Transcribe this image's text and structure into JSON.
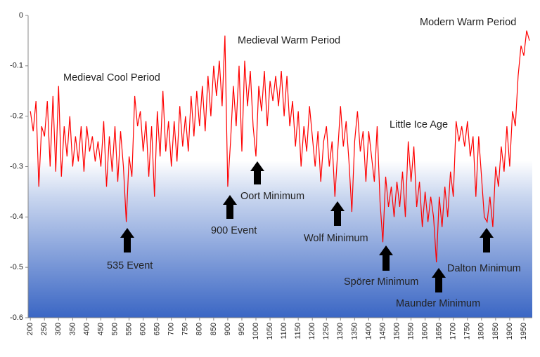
{
  "chart_data": {
    "type": "line",
    "color": "#ff0000",
    "x": [
      200,
      210,
      220,
      230,
      240,
      250,
      260,
      270,
      280,
      290,
      300,
      310,
      320,
      330,
      340,
      350,
      360,
      370,
      380,
      390,
      400,
      410,
      420,
      430,
      440,
      450,
      460,
      470,
      480,
      490,
      500,
      510,
      520,
      530,
      540,
      550,
      560,
      570,
      580,
      590,
      600,
      610,
      620,
      630,
      640,
      650,
      660,
      670,
      680,
      690,
      700,
      710,
      720,
      730,
      740,
      750,
      760,
      770,
      780,
      790,
      800,
      810,
      820,
      830,
      840,
      850,
      860,
      870,
      880,
      890,
      900,
      910,
      920,
      930,
      940,
      950,
      960,
      970,
      980,
      990,
      1000,
      1010,
      1020,
      1030,
      1040,
      1050,
      1060,
      1070,
      1080,
      1090,
      1100,
      1110,
      1120,
      1130,
      1140,
      1150,
      1160,
      1170,
      1180,
      1190,
      1200,
      1210,
      1220,
      1230,
      1240,
      1250,
      1260,
      1270,
      1280,
      1290,
      1300,
      1310,
      1320,
      1330,
      1340,
      1350,
      1360,
      1370,
      1380,
      1390,
      1400,
      1410,
      1420,
      1430,
      1440,
      1450,
      1460,
      1470,
      1480,
      1490,
      1500,
      1510,
      1520,
      1530,
      1540,
      1550,
      1560,
      1570,
      1580,
      1590,
      1600,
      1610,
      1620,
      1630,
      1640,
      1650,
      1660,
      1670,
      1680,
      1690,
      1700,
      1710,
      1720,
      1730,
      1740,
      1750,
      1760,
      1770,
      1780,
      1790,
      1800,
      1810,
      1820,
      1830,
      1840,
      1850,
      1860,
      1870,
      1880,
      1890,
      1900,
      1910,
      1920,
      1930,
      1940,
      1950,
      1960,
      1970
    ],
    "values": [
      -0.19,
      -0.23,
      -0.17,
      -0.34,
      -0.22,
      -0.24,
      -0.17,
      -0.3,
      -0.16,
      -0.31,
      -0.14,
      -0.32,
      -0.22,
      -0.28,
      -0.2,
      -0.3,
      -0.24,
      -0.29,
      -0.22,
      -0.31,
      -0.22,
      -0.27,
      -0.24,
      -0.29,
      -0.25,
      -0.3,
      -0.21,
      -0.34,
      -0.24,
      -0.31,
      -0.22,
      -0.33,
      -0.23,
      -0.3,
      -0.41,
      -0.28,
      -0.32,
      -0.16,
      -0.22,
      -0.19,
      -0.27,
      -0.21,
      -0.32,
      -0.22,
      -0.36,
      -0.19,
      -0.28,
      -0.15,
      -0.27,
      -0.21,
      -0.3,
      -0.21,
      -0.29,
      -0.18,
      -0.26,
      -0.2,
      -0.27,
      -0.16,
      -0.24,
      -0.15,
      -0.22,
      -0.14,
      -0.23,
      -0.12,
      -0.2,
      -0.1,
      -0.16,
      -0.09,
      -0.18,
      -0.04,
      -0.34,
      -0.25,
      -0.14,
      -0.22,
      -0.1,
      -0.27,
      -0.09,
      -0.18,
      -0.11,
      -0.22,
      -0.28,
      -0.14,
      -0.19,
      -0.11,
      -0.22,
      -0.13,
      -0.17,
      -0.12,
      -0.18,
      -0.11,
      -0.2,
      -0.12,
      -0.22,
      -0.17,
      -0.26,
      -0.19,
      -0.3,
      -0.22,
      -0.27,
      -0.18,
      -0.24,
      -0.3,
      -0.23,
      -0.33,
      -0.25,
      -0.22,
      -0.3,
      -0.25,
      -0.36,
      -0.27,
      -0.18,
      -0.26,
      -0.21,
      -0.29,
      -0.39,
      -0.25,
      -0.19,
      -0.27,
      -0.23,
      -0.33,
      -0.23,
      -0.28,
      -0.33,
      -0.22,
      -0.37,
      -0.45,
      -0.32,
      -0.38,
      -0.34,
      -0.4,
      -0.33,
      -0.38,
      -0.31,
      -0.4,
      -0.25,
      -0.33,
      -0.26,
      -0.38,
      -0.33,
      -0.42,
      -0.35,
      -0.41,
      -0.36,
      -0.4,
      -0.49,
      -0.36,
      -0.42,
      -0.34,
      -0.4,
      -0.31,
      -0.36,
      -0.21,
      -0.25,
      -0.22,
      -0.26,
      -0.21,
      -0.28,
      -0.24,
      -0.36,
      -0.24,
      -0.32,
      -0.4,
      -0.41,
      -0.36,
      -0.42,
      -0.3,
      -0.34,
      -0.26,
      -0.31,
      -0.22,
      -0.3,
      -0.19,
      -0.22,
      -0.12,
      -0.06,
      -0.08,
      -0.03,
      -0.05
    ],
    "xlim": [
      192,
      1980
    ],
    "ylim": [
      -0.6,
      0
    ],
    "xticks": [
      200,
      250,
      300,
      350,
      400,
      450,
      500,
      550,
      600,
      650,
      700,
      750,
      800,
      850,
      900,
      950,
      1000,
      1050,
      1100,
      1150,
      1200,
      1250,
      1300,
      1350,
      1400,
      1450,
      1500,
      1550,
      1600,
      1650,
      1700,
      1750,
      1800,
      1850,
      1900,
      1950
    ],
    "yticks": [
      0,
      -0.1,
      -0.2,
      -0.3,
      -0.4,
      -0.5,
      -0.6
    ],
    "annotations": [
      "Medieval Cool Period",
      "Medieval Warm Period",
      "Modern Warm Period",
      "Little Ice Age",
      "535 Event",
      "900 Event",
      "Oort Minimum",
      "Wolf Minimum",
      "Spörer Minimum",
      "Maunder Minimum",
      "Dalton Minimum"
    ]
  }
}
